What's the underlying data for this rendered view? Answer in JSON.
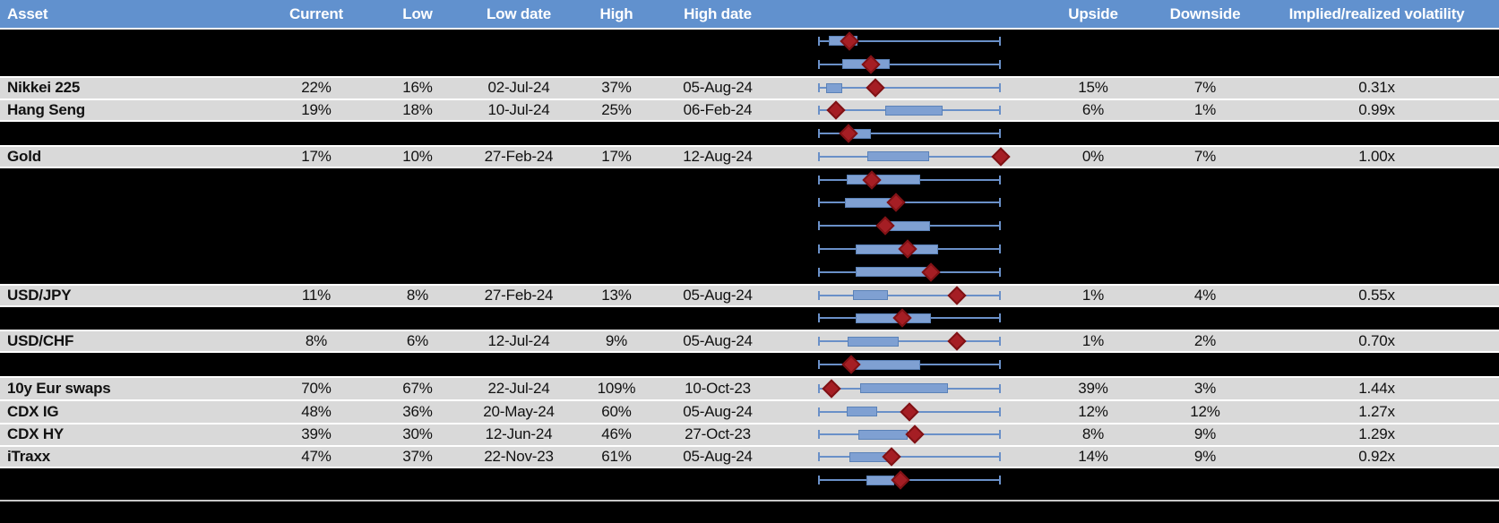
{
  "header": {
    "asset": "Asset",
    "current": "Current",
    "low": "Low",
    "low_date": "Low date",
    "high": "High",
    "high_date": "High date",
    "upside": "Upside",
    "downside": "Downside",
    "vol": "Implied/realized volatility"
  },
  "colors": {
    "header_bg": "#6191CE",
    "row_light": "#D9D9D9",
    "row_dark": "#000000",
    "whisker": "#6A90C8",
    "box_fill": "#7FA0D2",
    "box_border": "#5B82B8",
    "marker_fill": "#A51E24",
    "marker_border": "#801215",
    "divider": "#C8C8C8"
  },
  "rows": [
    {
      "bg": "dark",
      "asset": "",
      "current": "",
      "low": "",
      "low_date": "",
      "high": "",
      "high_date": "",
      "upside": "",
      "downside": "",
      "vol": "",
      "plot": {
        "box_start_pct": 5.9,
        "box_end_pct": 21.6,
        "marker_pct": 17.2
      }
    },
    {
      "bg": "dark",
      "asset": "",
      "current": "",
      "low": "",
      "low_date": "",
      "high": "",
      "high_date": "",
      "upside": "",
      "downside": "",
      "vol": "",
      "plot": {
        "box_start_pct": 13.2,
        "box_end_pct": 39.2,
        "marker_pct": 28.9
      }
    },
    {
      "bg": "light",
      "asset": "Nikkei 225",
      "current": "22%",
      "low": "16%",
      "low_date": "02-Jul-24",
      "high": "37%",
      "high_date": "05-Aug-24",
      "upside": "15%",
      "downside": "7%",
      "vol": "0.31x",
      "plot": {
        "box_start_pct": 4.4,
        "box_end_pct": 13.2,
        "marker_pct": 31.4
      }
    },
    {
      "bg": "light",
      "asset": "Hang Seng",
      "current": "19%",
      "low": "18%",
      "low_date": "10-Jul-24",
      "high": "25%",
      "high_date": "06-Feb-24",
      "upside": "6%",
      "downside": "1%",
      "vol": "0.99x",
      "plot": {
        "box_start_pct": 36.8,
        "box_end_pct": 68.1,
        "marker_pct": 9.8
      }
    },
    {
      "bg": "dark",
      "asset": "",
      "current": "",
      "low": "",
      "low_date": "",
      "high": "",
      "high_date": "",
      "upside": "",
      "downside": "",
      "vol": "",
      "plot": {
        "box_start_pct": 14.7,
        "box_end_pct": 28.9,
        "marker_pct": 16.7
      }
    },
    {
      "bg": "light",
      "asset": "Gold",
      "current": "17%",
      "low": "10%",
      "low_date": "27-Feb-24",
      "high": "17%",
      "high_date": "12-Aug-24",
      "upside": "0%",
      "downside": "7%",
      "vol": "1.00x",
      "plot": {
        "box_start_pct": 27.0,
        "box_end_pct": 60.8,
        "marker_pct": 100
      }
    },
    {
      "bg": "dark",
      "asset": "",
      "current": "",
      "low": "",
      "low_date": "",
      "high": "",
      "high_date": "",
      "upside": "",
      "downside": "",
      "vol": "",
      "plot": {
        "box_start_pct": 15.7,
        "box_end_pct": 55.9,
        "marker_pct": 29.4
      }
    },
    {
      "bg": "dark",
      "asset": "",
      "current": "",
      "low": "",
      "low_date": "",
      "high": "",
      "high_date": "",
      "upside": "",
      "downside": "",
      "vol": "",
      "plot": {
        "box_start_pct": 14.7,
        "box_end_pct": 40.2,
        "marker_pct": 42.6
      }
    },
    {
      "bg": "dark",
      "asset": "",
      "current": "",
      "low": "",
      "low_date": "",
      "high": "",
      "high_date": "",
      "upside": "",
      "downside": "",
      "vol": "",
      "plot": {
        "box_start_pct": 37.7,
        "box_end_pct": 61.3,
        "marker_pct": 36.8
      }
    },
    {
      "bg": "dark",
      "asset": "",
      "current": "",
      "low": "",
      "low_date": "",
      "high": "",
      "high_date": "",
      "upside": "",
      "downside": "",
      "vol": "",
      "plot": {
        "box_start_pct": 20.6,
        "box_end_pct": 65.7,
        "marker_pct": 49.0
      }
    },
    {
      "bg": "dark",
      "asset": "",
      "current": "",
      "low": "",
      "low_date": "",
      "high": "",
      "high_date": "",
      "upside": "",
      "downside": "",
      "vol": "",
      "plot": {
        "box_start_pct": 20.6,
        "box_end_pct": 60.8,
        "marker_pct": 61.8
      }
    },
    {
      "bg": "light",
      "asset": "USD/JPY",
      "current": "11%",
      "low": "8%",
      "low_date": "27-Feb-24",
      "high": "13%",
      "high_date": "05-Aug-24",
      "upside": "1%",
      "downside": "4%",
      "vol": "0.55x",
      "plot": {
        "box_start_pct": 19.1,
        "box_end_pct": 38.2,
        "marker_pct": 76.0
      }
    },
    {
      "bg": "dark",
      "asset": "",
      "current": "",
      "low": "",
      "low_date": "",
      "high": "",
      "high_date": "",
      "upside": "",
      "downside": "",
      "vol": "",
      "plot": {
        "box_start_pct": 20.6,
        "box_end_pct": 61.8,
        "marker_pct": 46.1
      }
    },
    {
      "bg": "light",
      "asset": "USD/CHF",
      "current": "8%",
      "low": "6%",
      "low_date": "12-Jul-24",
      "high": "9%",
      "high_date": "05-Aug-24",
      "upside": "1%",
      "downside": "2%",
      "vol": "0.70x",
      "plot": {
        "box_start_pct": 16.2,
        "box_end_pct": 44.1,
        "marker_pct": 76.0
      }
    },
    {
      "bg": "dark",
      "asset": "",
      "current": "",
      "low": "",
      "low_date": "",
      "high": "",
      "high_date": "",
      "upside": "",
      "downside": "",
      "vol": "",
      "plot": {
        "box_start_pct": 19.1,
        "box_end_pct": 55.9,
        "marker_pct": 18.1
      }
    },
    {
      "bg": "light",
      "asset": "10y Eur swaps",
      "current": "70%",
      "low": "67%",
      "low_date": "22-Jul-24",
      "high": "109%",
      "high_date": "10-Oct-23",
      "upside": "39%",
      "downside": "3%",
      "vol": "1.44x",
      "plot": {
        "box_start_pct": 23.0,
        "box_end_pct": 71.1,
        "marker_pct": 7.4
      }
    },
    {
      "bg": "light",
      "asset": "CDX IG",
      "current": "48%",
      "low": "36%",
      "low_date": "20-May-24",
      "high": "60%",
      "high_date": "05-Aug-24",
      "upside": "12%",
      "downside": "12%",
      "vol": "1.27x",
      "plot": {
        "box_start_pct": 15.7,
        "box_end_pct": 32.4,
        "marker_pct": 50.0
      }
    },
    {
      "bg": "light",
      "asset": "CDX HY",
      "current": "39%",
      "low": "30%",
      "low_date": "12-Jun-24",
      "high": "46%",
      "high_date": "27-Oct-23",
      "upside": "8%",
      "downside": "9%",
      "vol": "1.29x",
      "plot": {
        "box_start_pct": 22.1,
        "box_end_pct": 49.0,
        "marker_pct": 52.9
      }
    },
    {
      "bg": "light",
      "asset": "iTraxx",
      "current": "47%",
      "low": "37%",
      "low_date": "22-Nov-23",
      "high": "61%",
      "high_date": "05-Aug-24",
      "upside": "14%",
      "downside": "9%",
      "vol": "0.92x",
      "plot": {
        "box_start_pct": 17.2,
        "box_end_pct": 38.2,
        "marker_pct": 40.2
      }
    },
    {
      "bg": "dark",
      "asset": "",
      "current": "",
      "low": "",
      "low_date": "",
      "high": "",
      "high_date": "",
      "upside": "",
      "downside": "",
      "vol": "",
      "plot": {
        "box_start_pct": 26.5,
        "box_end_pct": 41.7,
        "marker_pct": 45.1
      }
    }
  ]
}
